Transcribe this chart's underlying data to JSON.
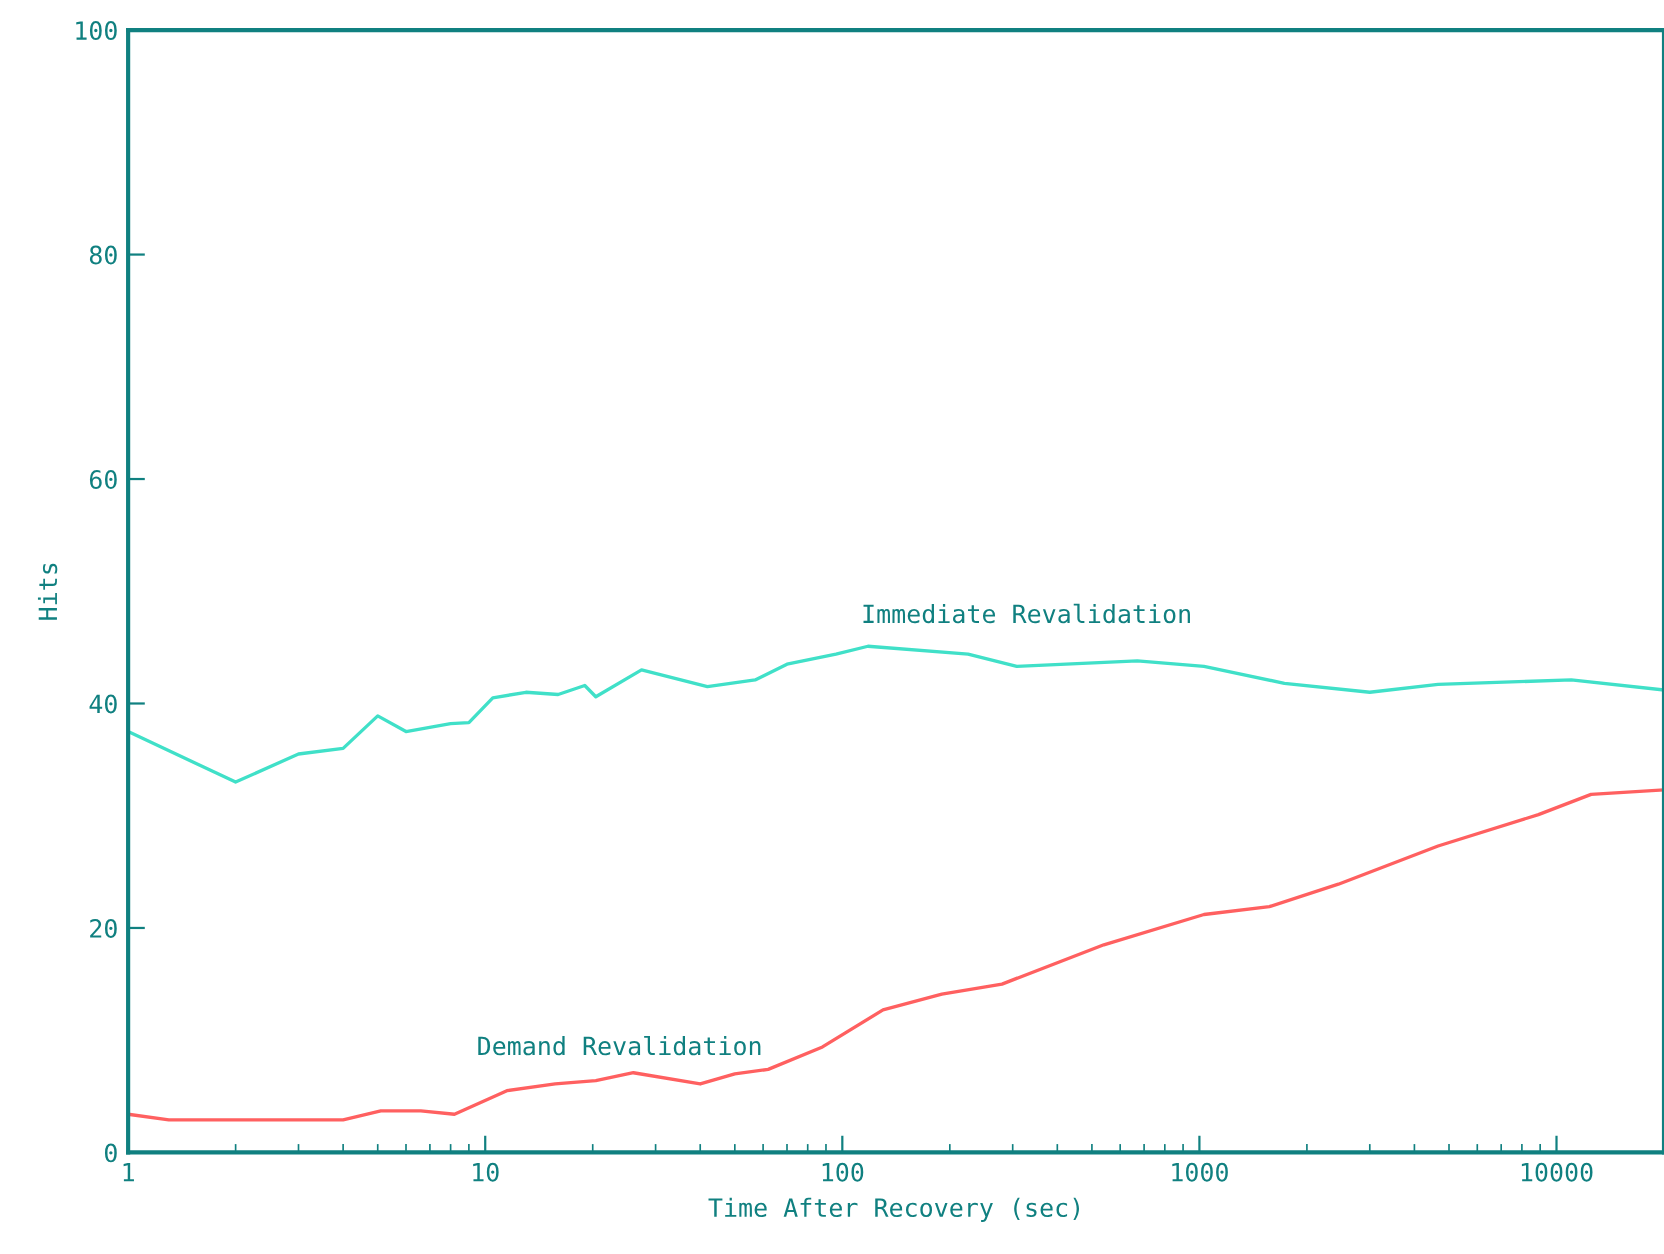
{
  "chart_data": {
    "type": "line",
    "xlabel": "Time After Recovery (sec)",
    "ylabel": "Hits",
    "log": "x",
    "xlim": [
      1,
      20000
    ],
    "xticks": [
      1,
      10,
      100,
      1000,
      10000
    ],
    "ylim": [
      0,
      100
    ],
    "yticks": [
      0,
      20,
      40,
      60,
      80,
      100
    ],
    "grid": false,
    "marker": "none",
    "line_style": "solid",
    "series": [
      {
        "name": "Immediate Revalidation",
        "color": "#40e0c8",
        "x": [
          1,
          2,
          3,
          4,
          5,
          6,
          8,
          9,
          10.5,
          13,
          16,
          19,
          20.4,
          27.4,
          41.9,
          57,
          70,
          96,
          118,
          225,
          308,
          670,
          1030,
          1730,
          3000,
          4660,
          11000,
          20000
        ],
        "values": [
          37.5,
          33,
          35.5,
          36,
          38.9,
          37.5,
          38.2,
          38.3,
          40.5,
          41,
          40.8,
          41.6,
          40.6,
          43,
          41.5,
          42.1,
          43.5,
          44.4,
          45.1,
          44.4,
          43.3,
          43.8,
          43.3,
          41.8,
          41,
          41.7,
          42.1,
          41.2
        ]
      },
      {
        "name": "Demand Revalidation",
        "color": "#ff6060",
        "x": [
          1,
          1.3,
          4,
          5.1,
          6.6,
          8.2,
          11.5,
          15.7,
          20.4,
          26,
          40,
          50,
          62,
          88,
          130,
          190,
          280,
          540,
          1030,
          1570,
          2450,
          4660,
          8900,
          12500,
          20000
        ],
        "values": [
          3.4,
          2.9,
          2.9,
          3.7,
          3.7,
          3.4,
          5.5,
          6.1,
          6.4,
          7.1,
          6.1,
          7,
          7.4,
          9.4,
          12.7,
          14.1,
          15,
          18.5,
          21.2,
          21.9,
          23.9,
          27.3,
          30.1,
          31.9,
          32.3
        ]
      }
    ]
  }
}
